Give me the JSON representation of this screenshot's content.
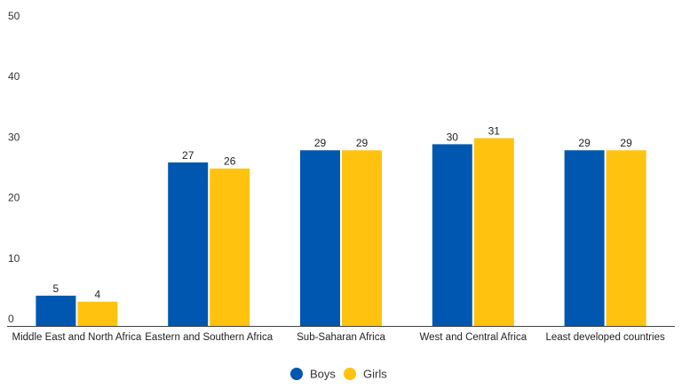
{
  "chart_data": {
    "type": "bar",
    "categories": [
      "Middle East and North Africa",
      "Eastern and Southern Africa",
      "Sub-Saharan Africa",
      "West and Central Africa",
      "Least developed countries"
    ],
    "series": [
      {
        "name": "Boys",
        "color": "#0057b0",
        "values": [
          5,
          27,
          29,
          30,
          29
        ]
      },
      {
        "name": "Girls",
        "color": "#ffc20e",
        "values": [
          4,
          26,
          29,
          31,
          29
        ]
      }
    ],
    "ylim": [
      0,
      50
    ],
    "yticks": [
      0,
      10,
      20,
      30,
      40,
      50
    ],
    "grid": false,
    "legend_position": "bottom-center",
    "data_labels": true
  }
}
